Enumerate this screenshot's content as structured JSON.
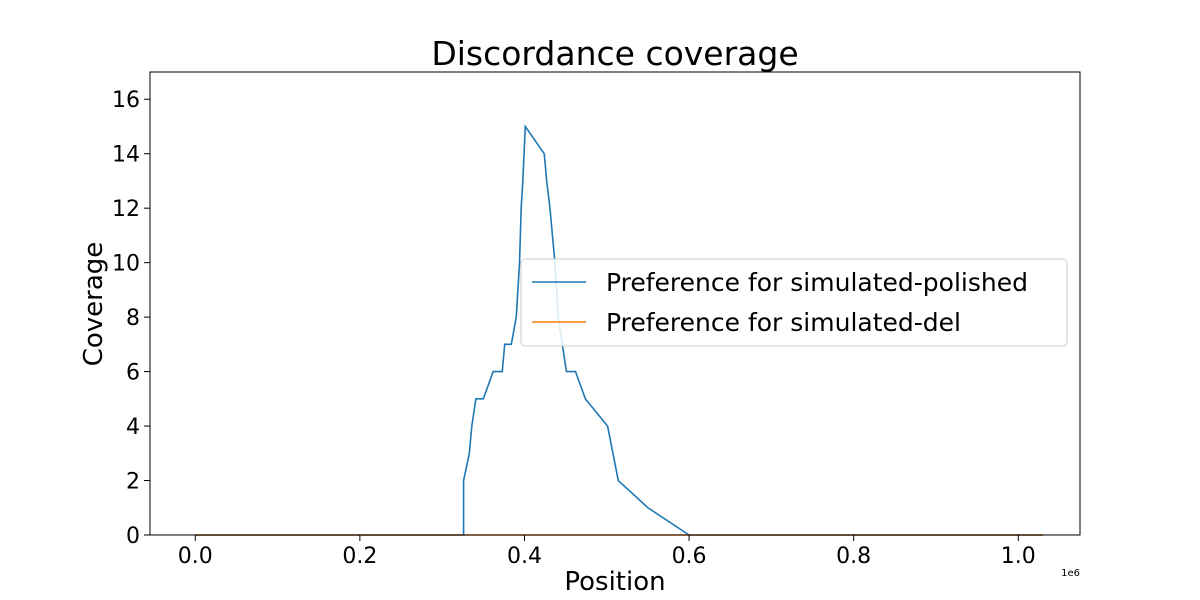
{
  "chart_data": {
    "type": "line",
    "step": true,
    "title": "Discordance coverage",
    "xlabel": "Position",
    "ylabel": "Coverage",
    "x_offset_text": "1e6",
    "xlim": [
      -0.055,
      1.075
    ],
    "ylim": [
      0,
      17
    ],
    "xticks": [
      0.0,
      0.2,
      0.4,
      0.6,
      0.8,
      1.0
    ],
    "xtick_labels": [
      "0.0",
      "0.2",
      "0.4",
      "0.6",
      "0.8",
      "1.0"
    ],
    "yticks": [
      0,
      2,
      4,
      6,
      8,
      10,
      12,
      14,
      16
    ],
    "ytick_labels": [
      "0",
      "2",
      "4",
      "6",
      "8",
      "10",
      "12",
      "14",
      "16"
    ],
    "grid": false,
    "legend_position": "center-right",
    "series": [
      {
        "name": "Preference for simulated-polished",
        "color": "#1f77b4",
        "x": [
          0.0,
          0.326,
          0.326,
          0.333,
          0.336,
          0.341,
          0.35,
          0.362,
          0.373,
          0.376,
          0.384,
          0.39,
          0.394,
          0.396,
          0.398,
          0.401,
          0.424,
          0.427,
          0.431,
          0.434,
          0.437,
          0.441,
          0.446,
          0.451,
          0.462,
          0.474,
          0.501,
          0.514,
          0.55,
          0.6,
          1.03
        ],
        "y": [
          0,
          0,
          2,
          3,
          4,
          5,
          5,
          6,
          6,
          7,
          7,
          8,
          10,
          12,
          13,
          15,
          14,
          13,
          12,
          11,
          10,
          8,
          7,
          6,
          6,
          5,
          4,
          2,
          1,
          0,
          0
        ]
      },
      {
        "name": "Preference for simulated-del",
        "color": "#ff7f0e",
        "x": [
          0.0,
          1.03
        ],
        "y": [
          0,
          0
        ]
      }
    ]
  }
}
